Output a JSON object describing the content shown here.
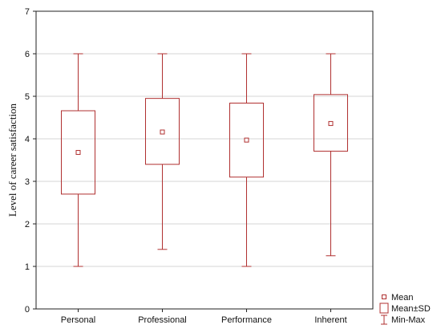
{
  "chart_data": {
    "type": "box",
    "title": "",
    "xlabel": "",
    "ylabel": "Level of career satisfaction",
    "ylim": [
      0,
      7
    ],
    "yticks": [
      "0",
      "1",
      "2",
      "3",
      "4",
      "5",
      "6",
      "7"
    ],
    "grid": true,
    "legend_placement": "bottom-right",
    "colors": {
      "box": "#b03030",
      "grid": "#d4d4d4",
      "axis": "#222222"
    },
    "categories": [
      "Personal",
      "Professional",
      "Performance",
      "Inherent"
    ],
    "series": [
      {
        "category": "Personal",
        "mean": 3.68,
        "mean_minus_sd": 2.7,
        "mean_plus_sd": 4.66,
        "min": 1.0,
        "max": 6.0
      },
      {
        "category": "Professional",
        "mean": 4.16,
        "mean_minus_sd": 3.4,
        "mean_plus_sd": 4.95,
        "min": 1.4,
        "max": 6.0
      },
      {
        "category": "Performance",
        "mean": 3.97,
        "mean_minus_sd": 3.1,
        "mean_plus_sd": 4.84,
        "min": 1.0,
        "max": 6.0
      },
      {
        "category": "Inherent",
        "mean": 4.36,
        "mean_minus_sd": 3.71,
        "mean_plus_sd": 5.04,
        "min": 1.25,
        "max": 6.0
      }
    ],
    "legend": [
      "Mean",
      "Mean±SD",
      "Min-Max"
    ]
  }
}
